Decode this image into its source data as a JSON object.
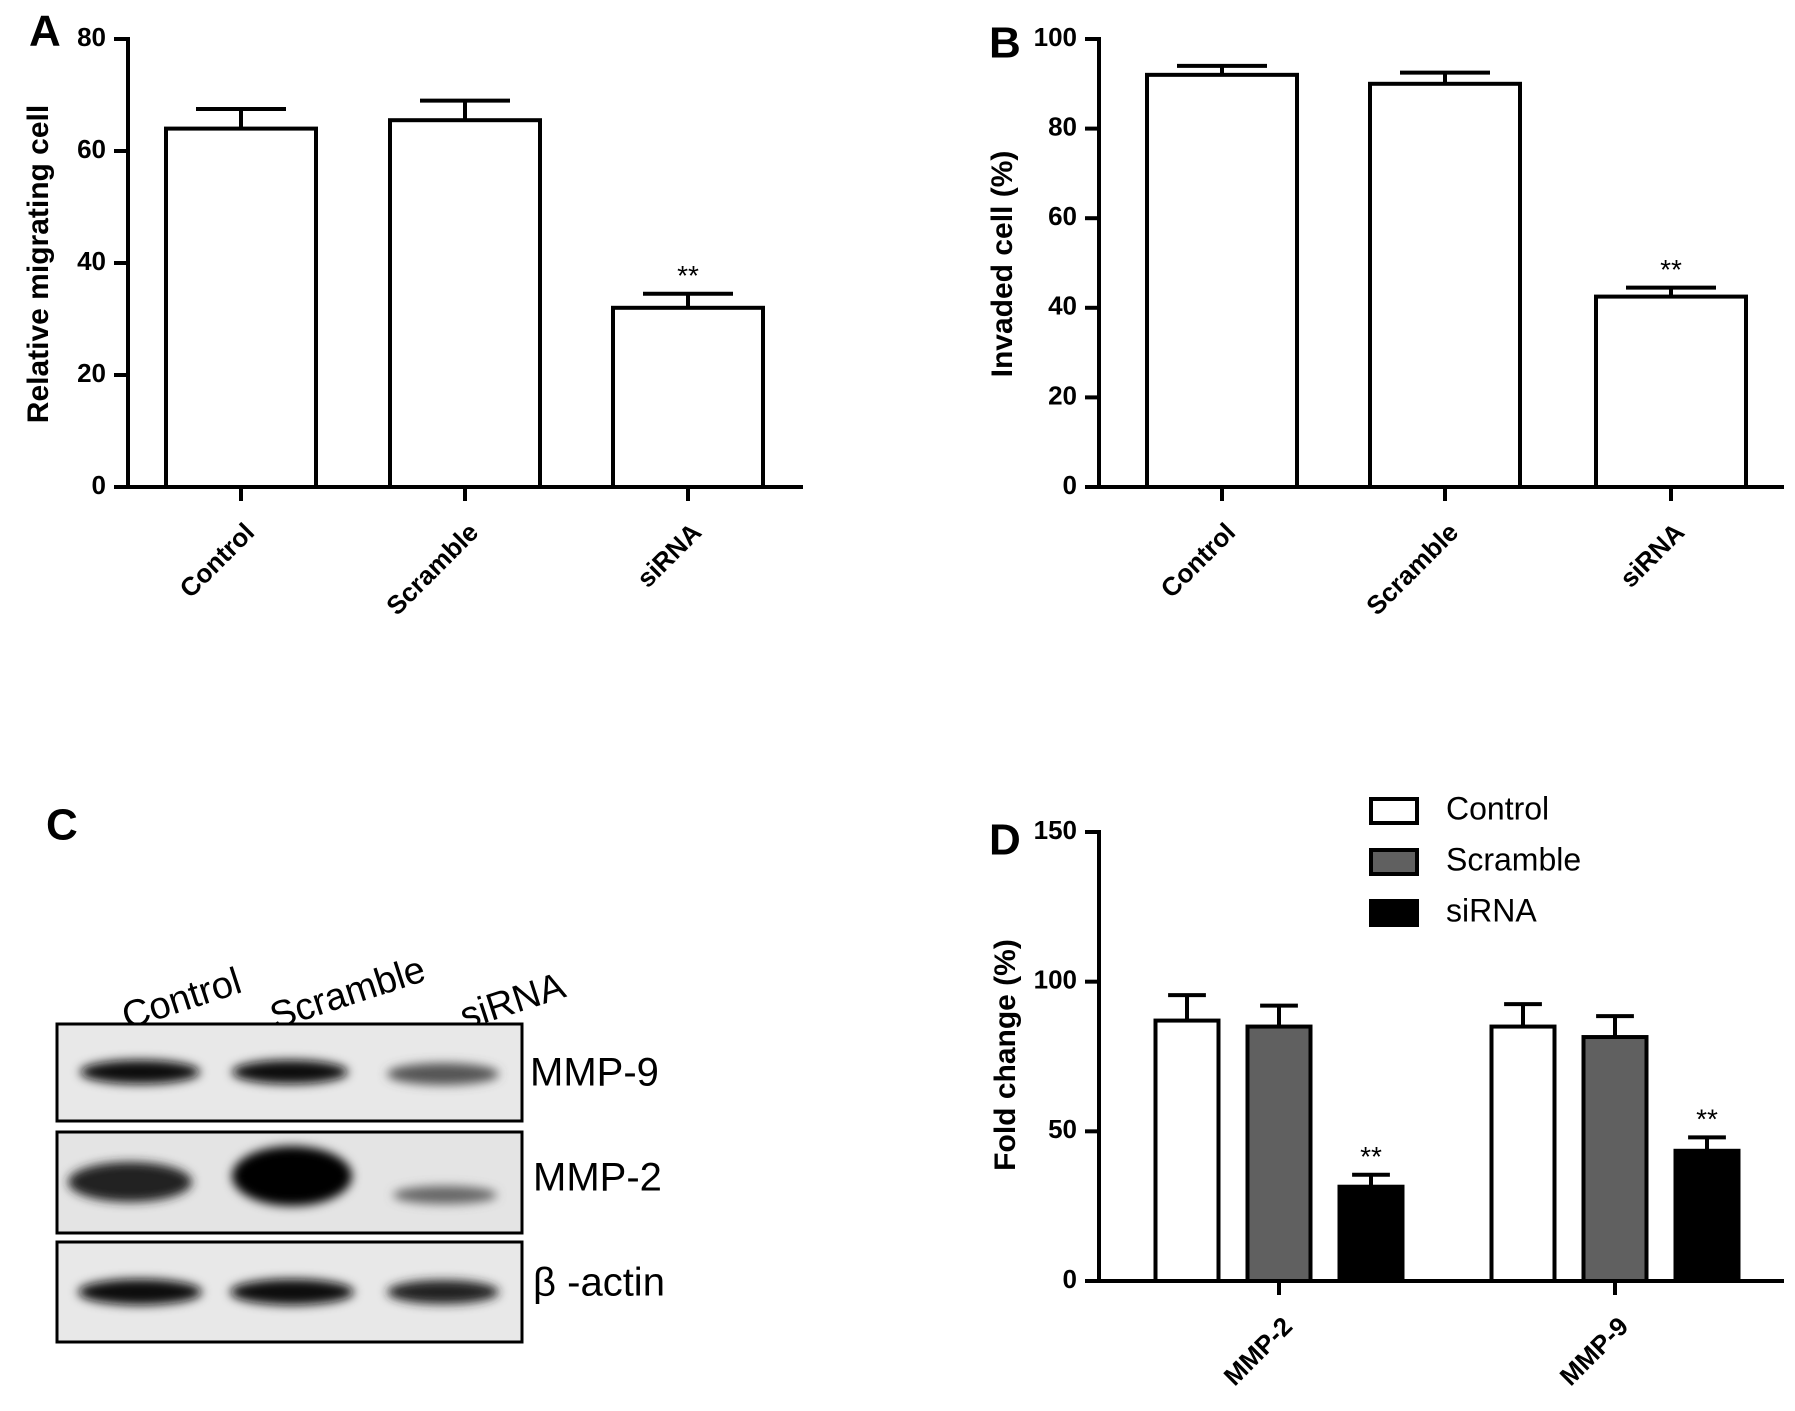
{
  "chart_data": [
    {
      "type": "bar",
      "panel_label": "A",
      "y_label": "Relative migrating cell",
      "categories": [
        "Control",
        "Scramble",
        "siRNA"
      ],
      "values": [
        64,
        65.5,
        32
      ],
      "errors": [
        3.5,
        3.5,
        2.5
      ],
      "value_annotations": [
        null,
        null,
        "**"
      ],
      "color": "#ffffff",
      "ylim": [
        0,
        80
      ],
      "yticks": [
        0,
        20,
        40,
        60,
        80
      ]
    },
    {
      "type": "bar",
      "panel_label": "B",
      "y_label": "Invaded cell (%)",
      "categories": [
        "Control",
        "Scramble",
        "siRNA"
      ],
      "values": [
        92,
        90,
        42.5
      ],
      "errors": [
        2,
        2.5,
        2
      ],
      "value_annotations": [
        null,
        null,
        "**"
      ],
      "color": "#ffffff",
      "ylim": [
        0,
        100
      ],
      "yticks": [
        0,
        20,
        40,
        60,
        80,
        100
      ]
    },
    {
      "type": "bar",
      "panel_label": "D",
      "y_label": "Fold change (%)",
      "categories": [
        "MMP-2",
        "MMP-9"
      ],
      "series": [
        {
          "name": "Control",
          "color": "#ffffff",
          "values": [
            87,
            85
          ],
          "errors": [
            8.5,
            7.5
          ],
          "value_annotations": [
            null,
            null
          ]
        },
        {
          "name": "Scramble",
          "color": "#606060",
          "values": [
            85,
            81.5
          ],
          "errors": [
            7,
            7
          ],
          "value_annotations": [
            null,
            null
          ]
        },
        {
          "name": "siRNA",
          "color": "#000000",
          "values": [
            31.5,
            43.5
          ],
          "errors": [
            4,
            4.5
          ],
          "value_annotations": [
            "**",
            "**"
          ]
        }
      ],
      "ylim": [
        0,
        150
      ],
      "yticks": [
        0,
        50,
        100,
        150
      ]
    }
  ],
  "blot": {
    "panel_label": "C",
    "lanes": [
      "Control",
      "Scramble",
      "siRNA"
    ],
    "bands": [
      "MMP-9",
      "MMP-2",
      "β -actin"
    ]
  }
}
